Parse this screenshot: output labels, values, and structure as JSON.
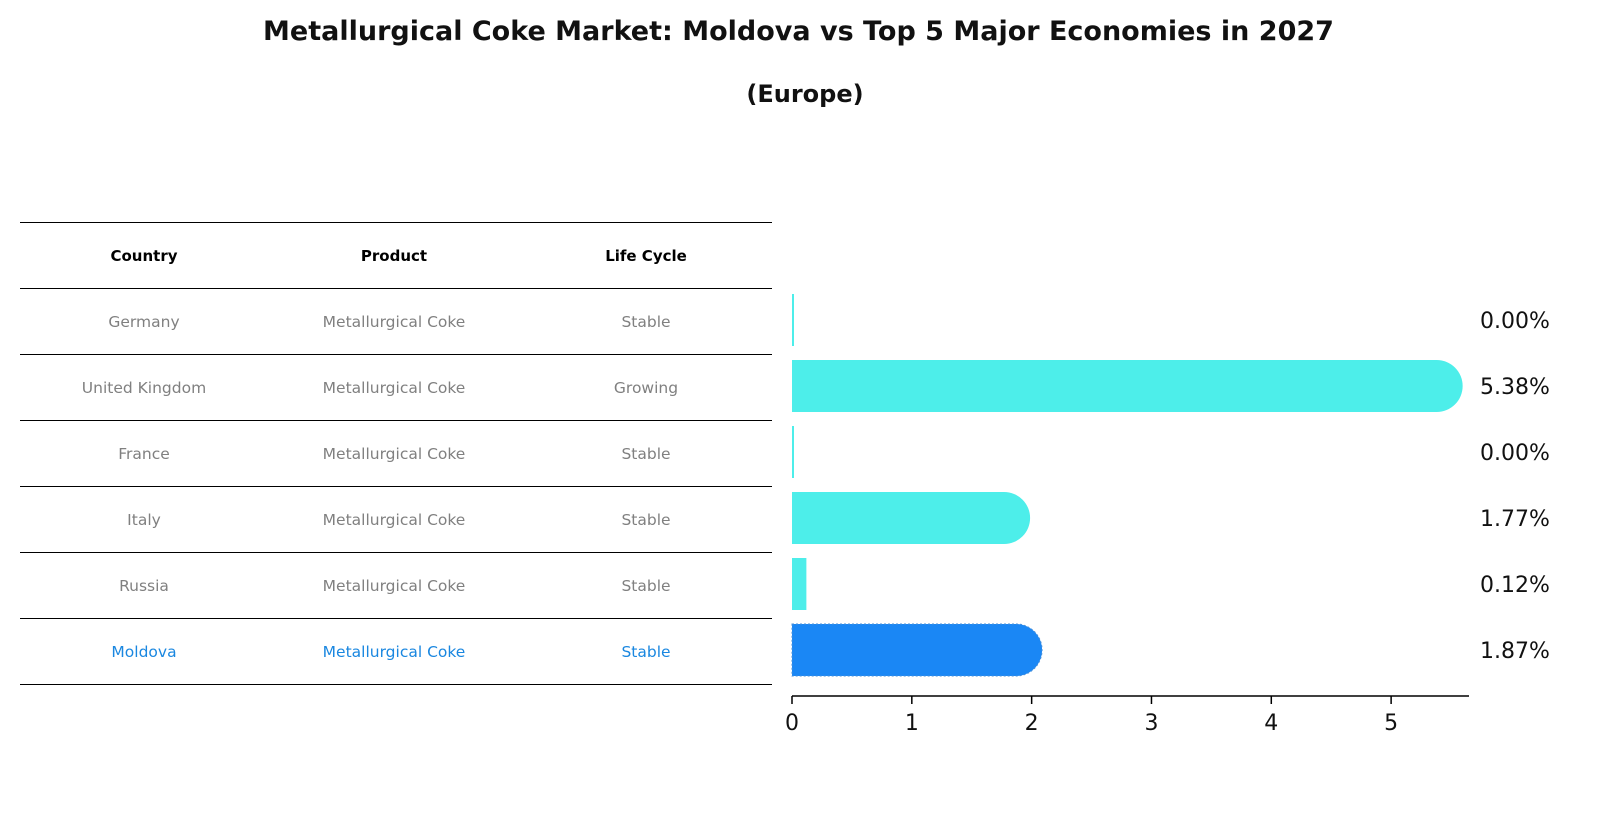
{
  "title": "Metallurgical Coke Market: Moldova vs Top 5 Major Economies in 2027",
  "subtitle": "(Europe)",
  "table": {
    "headers": [
      "Country",
      "Product",
      "Life Cycle"
    ],
    "rows": [
      {
        "country": "Germany",
        "product": "Metallurgical Coke",
        "life_cycle": "Stable"
      },
      {
        "country": "United Kingdom",
        "product": "Metallurgical Coke",
        "life_cycle": "Growing"
      },
      {
        "country": "France",
        "product": "Metallurgical Coke",
        "life_cycle": "Stable"
      },
      {
        "country": "Italy",
        "product": "Metallurgical Coke",
        "life_cycle": "Stable"
      },
      {
        "country": "Russia",
        "product": "Metallurgical Coke",
        "life_cycle": "Stable"
      },
      {
        "country": "Moldova",
        "product": "Metallurgical Coke",
        "life_cycle": "Stable"
      }
    ]
  },
  "colors": {
    "bar": "#4deeea",
    "highlight": "#1a87f5",
    "highlight_text": "#1a87e0",
    "muted_text": "#808080"
  },
  "chart_data": {
    "type": "bar",
    "orientation": "horizontal",
    "categories": [
      "Germany",
      "United Kingdom",
      "France",
      "Italy",
      "Russia",
      "Moldova"
    ],
    "values": [
      0.0,
      5.38,
      0.0,
      1.77,
      0.12,
      1.87
    ],
    "value_labels": [
      "0.00%",
      "5.38%",
      "0.00%",
      "1.77%",
      "0.12%",
      "1.87%"
    ],
    "highlight": "Moldova",
    "xlim": [
      0,
      5.65
    ],
    "xticks": [
      0,
      1,
      2,
      3,
      4,
      5
    ],
    "xlabel": "",
    "ylabel": "",
    "grid": false
  }
}
